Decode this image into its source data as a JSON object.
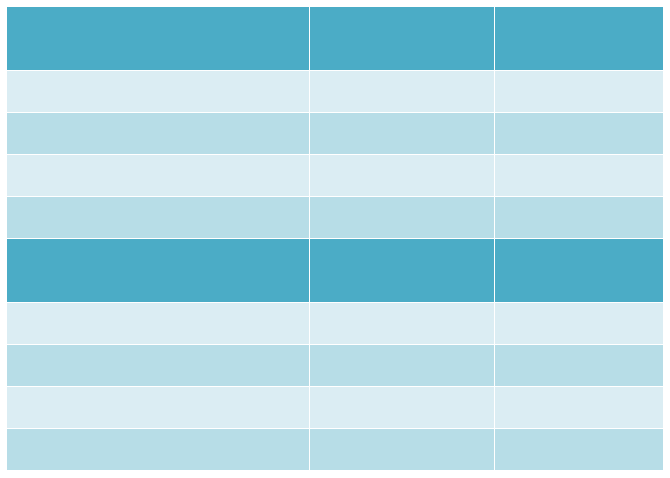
{
  "colors": {
    "header": "#4bacc6",
    "row_light": "#dbedf3",
    "row_dark": "#b7dde7",
    "grid_line": "#ffffff"
  },
  "table": {
    "columns": 3,
    "sections": [
      {
        "header": [
          "",
          "",
          ""
        ],
        "rows": [
          [
            "",
            "",
            ""
          ],
          [
            "",
            "",
            ""
          ],
          [
            "",
            "",
            ""
          ],
          [
            "",
            "",
            ""
          ]
        ]
      },
      {
        "header": [
          "",
          "",
          ""
        ],
        "rows": [
          [
            "",
            "",
            ""
          ],
          [
            "",
            "",
            ""
          ],
          [
            "",
            "",
            ""
          ],
          [
            "",
            "",
            ""
          ]
        ]
      }
    ]
  }
}
